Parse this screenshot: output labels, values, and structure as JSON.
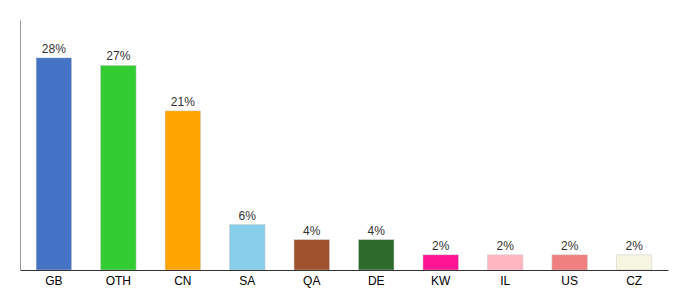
{
  "chart_data": {
    "type": "bar",
    "categories": [
      "GB",
      "OTH",
      "CN",
      "SA",
      "QA",
      "DE",
      "KW",
      "IL",
      "US",
      "CZ"
    ],
    "values": [
      28,
      27,
      21,
      6,
      4,
      4,
      2,
      2,
      2,
      2
    ],
    "value_labels": [
      "28%",
      "27%",
      "21%",
      "6%",
      "4%",
      "4%",
      "2%",
      "2%",
      "2%",
      "2%"
    ],
    "colors": [
      "#4472c4",
      "#33cc33",
      "#ffa500",
      "#87ceeb",
      "#a0522d",
      "#2d6b2d",
      "#ff1493",
      "#ffb6c1",
      "#f08080",
      "#f5f5e0"
    ],
    "ylim": [
      0,
      33
    ],
    "grid": false,
    "data_labels": true,
    "tick_labels": "x"
  }
}
